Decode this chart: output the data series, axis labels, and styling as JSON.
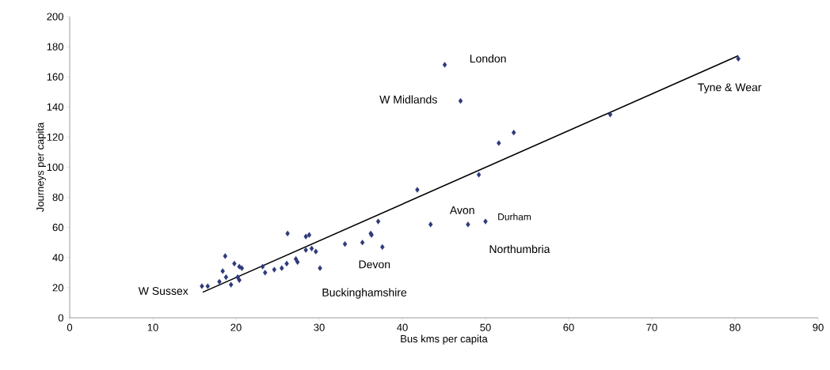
{
  "chart_data": {
    "type": "scatter",
    "xlabel": "Bus kms per capita",
    "ylabel": "Journeys per capita",
    "xlim": [
      0,
      90
    ],
    "ylim": [
      0,
      200
    ],
    "xticks": [
      0,
      10,
      20,
      30,
      40,
      50,
      60,
      70,
      80,
      90
    ],
    "yticks": [
      0,
      20,
      40,
      60,
      80,
      100,
      120,
      140,
      160,
      180,
      200
    ],
    "grid": false,
    "marker": "diamond",
    "series": [
      {
        "color": "#2e3a7a",
        "x": [
          15.9,
          16.6,
          18.0,
          18.4,
          18.7,
          18.8,
          19.4,
          19.8,
          20.2,
          20.4,
          20.4,
          20.7,
          23.2,
          23.5,
          24.6,
          25.5,
          26.1,
          26.2,
          27.2,
          27.4,
          28.4,
          28.8,
          28.4,
          29.1,
          29.6,
          30.1,
          33.1,
          35.2,
          36.3,
          37.1,
          37.6,
          36.2,
          41.8,
          43.4,
          47.9,
          50.0,
          49.2,
          51.6,
          53.4,
          45.1,
          47.0,
          65.0,
          80.4
        ],
        "values": [
          21,
          21,
          24,
          31,
          41,
          27,
          22,
          36,
          27,
          25,
          34,
          33,
          34,
          30,
          32,
          33,
          36,
          56,
          39,
          37,
          54,
          55,
          45,
          46,
          44,
          33,
          49,
          50,
          55,
          64,
          47,
          56,
          85,
          62,
          62,
          64,
          95,
          116,
          123,
          168,
          144,
          135,
          172
        ]
      },
      {
        "type": "line",
        "color": "#000000",
        "marker": "none",
        "line_style": "solid",
        "x": [
          16.0,
          80.4
        ],
        "values": [
          17,
          174
        ]
      }
    ],
    "annotations": [
      {
        "text": "London",
        "x": 45.1,
        "y": 168
      },
      {
        "text": "W Midlands",
        "x": 47.0,
        "y": 144
      },
      {
        "text": "Tyne & Wear",
        "x": 80.4,
        "y": 172
      },
      {
        "text": "Avon",
        "x": 43.4,
        "y": 62
      },
      {
        "text": "Durham",
        "x": 50.0,
        "y": 64
      },
      {
        "text": "Northumbria",
        "x": 47.9,
        "y": 62
      },
      {
        "text": "Devon",
        "x": 37.6,
        "y": 47
      },
      {
        "text": "Buckinghamshire",
        "x": 30.1,
        "y": 33
      },
      {
        "text": "W Sussex",
        "x": 15.9,
        "y": 21
      }
    ]
  }
}
